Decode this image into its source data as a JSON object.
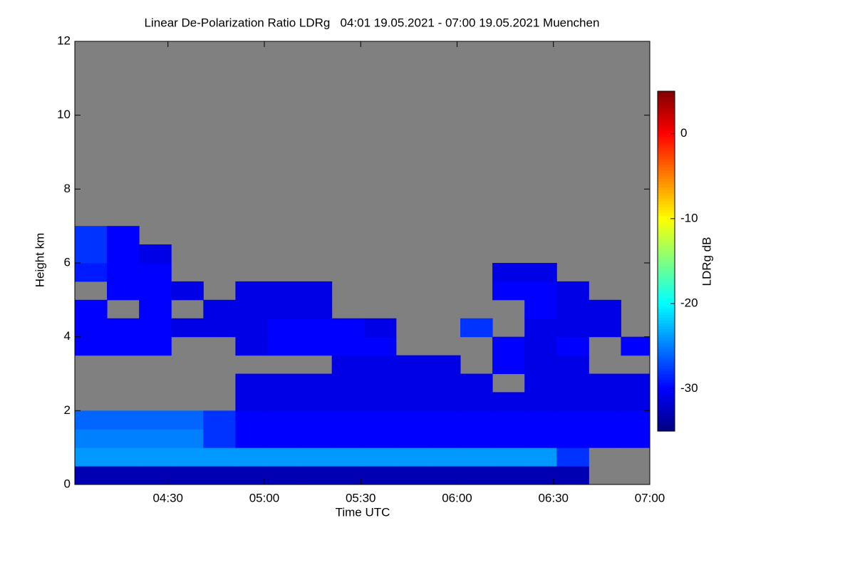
{
  "chart_data": {
    "type": "heatmap",
    "title": "Linear De-Polarization Ratio LDRg   04:01 19.05.2021 - 07:00 19.05.2021 Muenchen",
    "x_label": "Time UTC",
    "y_label": "Height km",
    "colorbar_label": "LDRg dB",
    "xlim": [
      241,
      420
    ],
    "xticks": [
      {
        "value": 270,
        "label": "04:30"
      },
      {
        "value": 300,
        "label": "05:00"
      },
      {
        "value": 330,
        "label": "05:30"
      },
      {
        "value": 360,
        "label": "06:00"
      },
      {
        "value": 390,
        "label": "06:30"
      },
      {
        "value": 420,
        "label": "07:00"
      }
    ],
    "ylim": [
      0,
      12
    ],
    "yticks": [
      0,
      2,
      4,
      6,
      8,
      10,
      12
    ],
    "zlim": [
      -35,
      5
    ],
    "zticks": [
      -30,
      -20,
      -10,
      0
    ],
    "colormap": "jet",
    "missing_color": "#808080",
    "x_edges": [
      241,
      251,
      261,
      271,
      281,
      291,
      301,
      311,
      321,
      331,
      341,
      351,
      361,
      371,
      381,
      391,
      401,
      411,
      420
    ],
    "y_edges": [
      0,
      0.5,
      1,
      1.5,
      2,
      2.5,
      3,
      3.5,
      4,
      4.5,
      5,
      5.5,
      6,
      6.5,
      7,
      7.5,
      8,
      8.5,
      9,
      9.5,
      10,
      10.5,
      11,
      11.5,
      12
    ],
    "z": [
      [
        -33,
        -33,
        -33,
        -33,
        -33,
        -33,
        -33,
        -33,
        -33,
        -33,
        -33,
        -33,
        -33,
        -33,
        -33,
        -33,
        null,
        null
      ],
      [
        -24,
        -24,
        -24,
        -24,
        -24,
        -24,
        -24,
        -24,
        -24,
        -24,
        -24,
        -24,
        -24,
        -24,
        -24,
        -28,
        null,
        null
      ],
      [
        -25,
        -25,
        -25,
        -25,
        -28,
        -30,
        -30,
        -30,
        -30,
        -30,
        -30,
        -30,
        -30,
        -30,
        -30,
        -30,
        -30,
        -30
      ],
      [
        -26,
        -26,
        -26,
        -26,
        -28,
        -30,
        -30,
        -30,
        -30,
        -30,
        -30,
        -30,
        -30,
        -30,
        -30,
        -30,
        -30,
        -30
      ],
      [
        null,
        null,
        null,
        null,
        null,
        -31,
        -31,
        -31,
        -31,
        -31,
        -31,
        -31,
        -31,
        -31,
        -31,
        -31,
        -31,
        -31
      ],
      [
        null,
        null,
        null,
        null,
        null,
        -31,
        -31,
        -31,
        -31,
        -31,
        -31,
        -31,
        -31,
        null,
        -31,
        -31,
        -31,
        -31
      ],
      [
        null,
        null,
        null,
        null,
        null,
        null,
        null,
        null,
        -31,
        -31,
        -31,
        -31,
        null,
        -30,
        -31,
        -31,
        null,
        null
      ],
      [
        -30,
        -30,
        -30,
        null,
        null,
        -31,
        -30,
        -30,
        -30,
        -30,
        null,
        null,
        null,
        -30,
        -31,
        -30,
        null,
        -30
      ],
      [
        -30,
        -30,
        -30,
        -31,
        -31,
        -31,
        -30,
        -30,
        -30,
        -31,
        null,
        null,
        -28,
        null,
        -31,
        -31,
        -31,
        null
      ],
      [
        -30,
        null,
        -30,
        null,
        -31,
        -31,
        -31,
        -31,
        null,
        null,
        null,
        null,
        null,
        null,
        -30,
        -31,
        -31,
        null
      ],
      [
        null,
        -30,
        -30,
        -31,
        null,
        -31,
        -31,
        -31,
        null,
        null,
        null,
        null,
        null,
        -30,
        -30,
        -31,
        null,
        null
      ],
      [
        -29,
        -30,
        -30,
        null,
        null,
        null,
        null,
        null,
        null,
        null,
        null,
        null,
        null,
        -31,
        -31,
        null,
        null,
        null
      ],
      [
        -28,
        -30,
        -31,
        null,
        null,
        null,
        null,
        null,
        null,
        null,
        null,
        null,
        null,
        null,
        null,
        null,
        null,
        null
      ],
      [
        -28,
        -30,
        null,
        null,
        null,
        null,
        null,
        null,
        null,
        null,
        null,
        null,
        null,
        null,
        null,
        null,
        null,
        null
      ],
      [
        null,
        null,
        null,
        null,
        null,
        null,
        null,
        null,
        null,
        null,
        null,
        null,
        null,
        null,
        null,
        null,
        null,
        null
      ],
      [
        null,
        null,
        null,
        null,
        null,
        null,
        null,
        null,
        null,
        null,
        null,
        null,
        null,
        null,
        null,
        null,
        null,
        null
      ],
      [
        null,
        null,
        null,
        null,
        null,
        null,
        null,
        null,
        null,
        null,
        null,
        null,
        null,
        null,
        null,
        null,
        null,
        null
      ],
      [
        null,
        null,
        null,
        null,
        null,
        null,
        null,
        null,
        null,
        null,
        null,
        null,
        null,
        null,
        null,
        null,
        null,
        null
      ],
      [
        null,
        null,
        null,
        null,
        null,
        null,
        null,
        null,
        null,
        null,
        null,
        null,
        null,
        null,
        null,
        null,
        null,
        null
      ],
      [
        null,
        null,
        null,
        null,
        null,
        null,
        null,
        null,
        null,
        null,
        null,
        null,
        null,
        null,
        null,
        null,
        null,
        null
      ],
      [
        null,
        null,
        null,
        null,
        null,
        null,
        null,
        null,
        null,
        null,
        null,
        null,
        null,
        null,
        null,
        null,
        null,
        null
      ],
      [
        null,
        null,
        null,
        null,
        null,
        null,
        null,
        null,
        null,
        null,
        null,
        null,
        null,
        null,
        null,
        null,
        null,
        null
      ],
      [
        null,
        null,
        null,
        null,
        null,
        null,
        null,
        null,
        null,
        null,
        null,
        null,
        null,
        null,
        null,
        null,
        null,
        null
      ],
      [
        null,
        null,
        null,
        null,
        null,
        null,
        null,
        null,
        null,
        null,
        null,
        null,
        null,
        null,
        null,
        null,
        null,
        null
      ]
    ]
  }
}
